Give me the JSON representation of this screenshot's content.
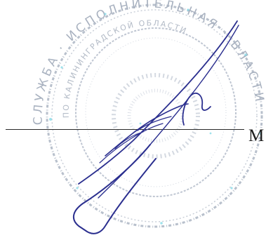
{
  "document": {
    "stamp": {
      "icon": "official-seal-icon",
      "color": "#9aa4b6",
      "accent_color": "#5fd0e0",
      "outer_ring_text": "СЛУЖБА · ИСПОЛНИТЕЛЬНАЯ · ВЛАСТИ ·",
      "inner_ring_text": "ПО КАЛИНИНГРАДСКОЙ ОБЛАСТИ"
    },
    "signature": {
      "icon": "handwritten-signature-icon",
      "ink_color": "#2b2f8f"
    },
    "signature_line": {
      "initial": "M"
    }
  }
}
